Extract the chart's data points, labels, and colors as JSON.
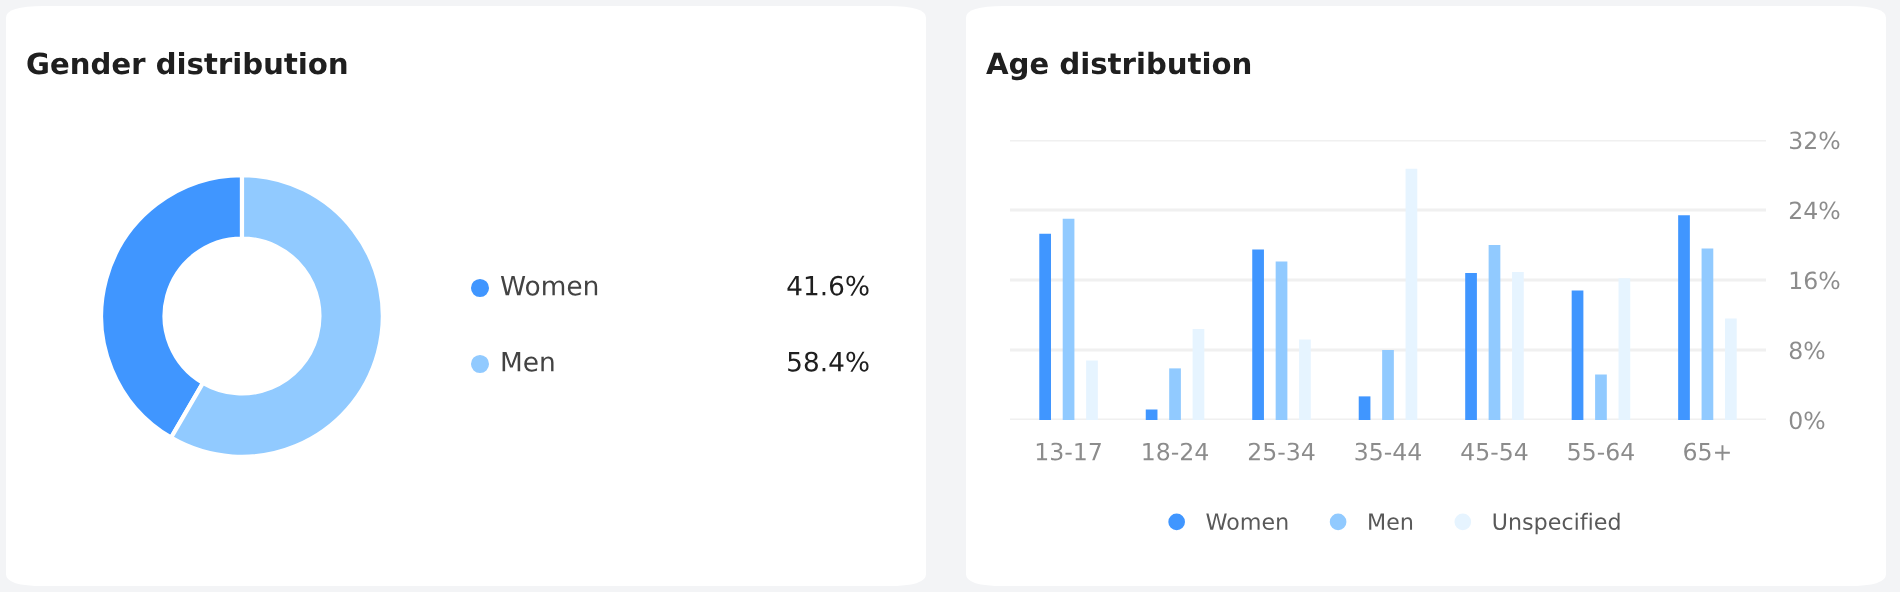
{
  "chart_data": [
    {
      "type": "donut",
      "title": "Gender distribution",
      "categories": [
        "Women",
        "Men"
      ],
      "values": [
        41.6,
        58.4
      ],
      "colors": [
        "#4096ff",
        "#91caff"
      ],
      "value_labels": [
        "41.6%",
        "58.4%"
      ],
      "legend": "right"
    },
    {
      "type": "bar",
      "title": "Age distribution",
      "categories": [
        "13-17",
        "18-24",
        "25-34",
        "35-44",
        "45-54",
        "55-64",
        "65+"
      ],
      "series": [
        {
          "name": "Women",
          "color": "#4096ff",
          "values": [
            21.3,
            1.2,
            19.5,
            2.7,
            16.8,
            14.8,
            23.4
          ]
        },
        {
          "name": "Men",
          "color": "#91caff",
          "values": [
            23.0,
            5.9,
            18.1,
            8.0,
            20.0,
            5.2,
            19.6
          ]
        },
        {
          "name": "Unspecified",
          "color": "#e6f4ff",
          "values": [
            6.8,
            10.4,
            9.2,
            28.7,
            16.9,
            16.2,
            11.6
          ]
        }
      ],
      "ylim": [
        0,
        32
      ],
      "yticks": [
        {
          "value": 0,
          "label": "0%"
        },
        {
          "value": 8,
          "label": "8%"
        },
        {
          "value": 16,
          "label": "16%"
        },
        {
          "value": 24,
          "label": "24%"
        },
        {
          "value": 32,
          "label": "32%"
        }
      ],
      "grid": "y",
      "legend": "bottom"
    }
  ]
}
